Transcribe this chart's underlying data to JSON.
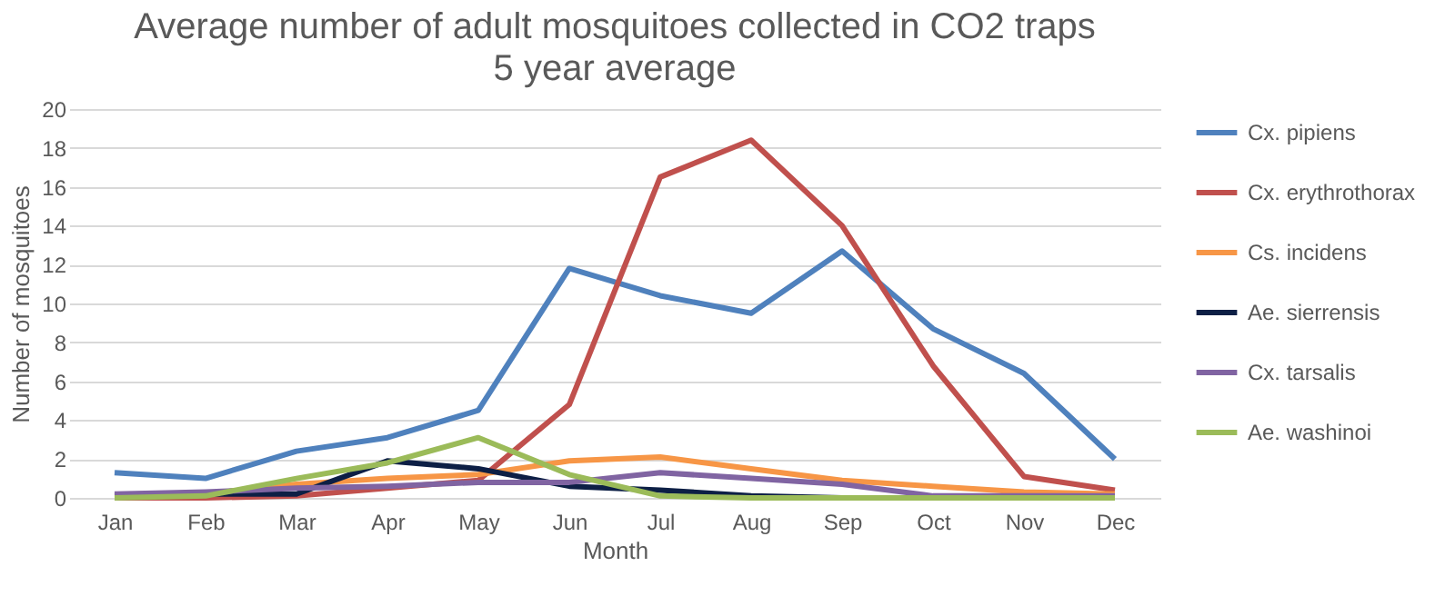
{
  "chart_data": {
    "type": "line",
    "title": "Average number of adult mosquitoes collected in CO2 traps",
    "subtitle": "5 year average",
    "xlabel": "Month",
    "ylabel": "Number of mosquitoes",
    "categories": [
      "Jan",
      "Feb",
      "Mar",
      "Apr",
      "May",
      "Jun",
      "Jul",
      "Aug",
      "Sep",
      "Oct",
      "Nov",
      "Dec"
    ],
    "series": [
      {
        "name": "Cx. pipiens",
        "color": "#4f81bd",
        "values": [
          1.3,
          1.0,
          2.4,
          3.1,
          4.5,
          11.8,
          10.4,
          9.5,
          12.7,
          8.7,
          6.4,
          2.0
        ]
      },
      {
        "name": "Cx. erythrothorax",
        "color": "#c0504d",
        "values": [
          0,
          0,
          0.1,
          0.5,
          0.9,
          4.8,
          16.5,
          18.4,
          14.0,
          6.8,
          1.1,
          0.4
        ]
      },
      {
        "name": "Cs. incidens",
        "color": "#f79646",
        "values": [
          0.1,
          0.2,
          0.7,
          1.0,
          1.2,
          1.9,
          2.1,
          1.5,
          0.9,
          0.6,
          0.3,
          0.2
        ]
      },
      {
        "name": "Ae. sierrensis",
        "color": "#0d1f45",
        "values": [
          0.1,
          0.2,
          0.2,
          1.9,
          1.5,
          0.6,
          0.4,
          0.1,
          0,
          0,
          0,
          0
        ]
      },
      {
        "name": "Cx. tarsalis",
        "color": "#8064a2",
        "values": [
          0.2,
          0.3,
          0.5,
          0.6,
          0.8,
          0.8,
          1.3,
          1.0,
          0.7,
          0.1,
          0.1,
          0.1
        ]
      },
      {
        "name": "Ae. washinoi",
        "color": "#9bbb59",
        "values": [
          0,
          0.1,
          1.0,
          1.8,
          3.1,
          1.2,
          0.1,
          0,
          0,
          0,
          0,
          0
        ]
      }
    ],
    "ylim": [
      0,
      20
    ],
    "yticks": [
      0,
      2,
      4,
      6,
      8,
      10,
      12,
      14,
      16,
      18,
      20
    ],
    "grid": "y",
    "legend": "top right",
    "marker": "none",
    "line_style": "solid"
  }
}
